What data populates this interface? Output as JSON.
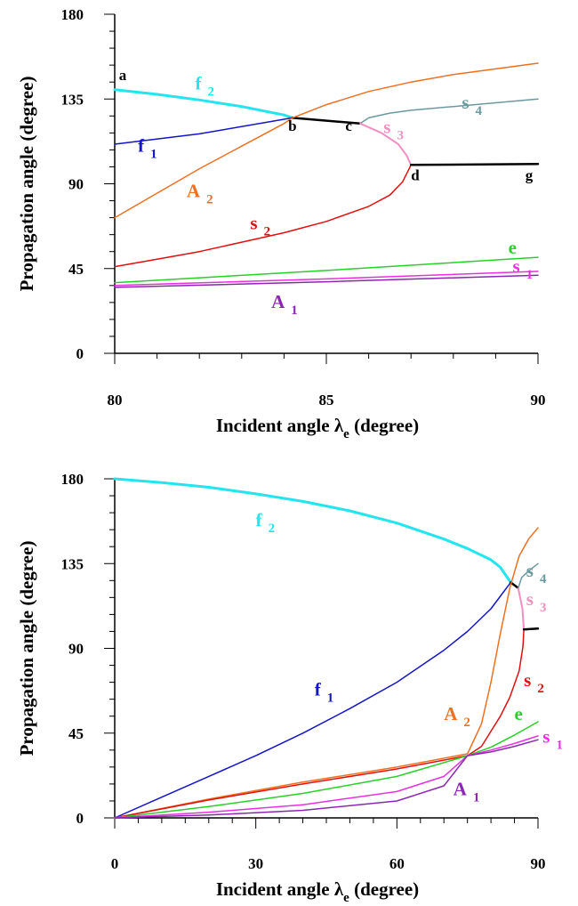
{
  "chart_data": [
    {
      "type": "line",
      "xlabel": "Incident angle λe (degree)",
      "ylabel": "Propagation angle (degree)",
      "xlim": [
        80,
        90
      ],
      "ylim": [
        0,
        180
      ],
      "x_ticks": [
        80,
        85,
        90
      ],
      "y_ticks": [
        0,
        45,
        90,
        135,
        180
      ],
      "grid": false,
      "series": [
        {
          "name": "f2",
          "color": "#22e5f0",
          "width": 3,
          "x": [
            80,
            81,
            82,
            83,
            84,
            84.2
          ],
          "y": [
            140,
            137.5,
            134.5,
            131,
            126.5,
            125
          ]
        },
        {
          "name": "f1",
          "color": "#1414c8",
          "width": 1.5,
          "x": [
            80,
            82,
            84.2
          ],
          "y": [
            111,
            116.5,
            125
          ]
        },
        {
          "name": "bc",
          "color": "#000000",
          "width": 2.5,
          "x": [
            84.2,
            85.8
          ],
          "y": [
            125,
            122
          ]
        },
        {
          "name": "A2",
          "color": "#ee7020",
          "width": 1.5,
          "x": [
            80,
            81,
            82,
            83,
            84,
            84.2,
            85,
            86,
            87,
            88,
            89,
            90
          ],
          "y": [
            72,
            85,
            98,
            110,
            122,
            125,
            132,
            139,
            144,
            148,
            151,
            154
          ]
        },
        {
          "name": "s4",
          "color": "#6a9aa0",
          "width": 1.5,
          "x": [
            85.8,
            86,
            86.5,
            87,
            88,
            89,
            90
          ],
          "y": [
            122,
            125,
            127.5,
            129,
            131,
            133,
            135
          ]
        },
        {
          "name": "s3",
          "color": "#f090c0",
          "width": 2,
          "x": [
            85.8,
            86.3,
            86.7,
            86.9,
            87
          ],
          "y": [
            122,
            117,
            111,
            105,
            100
          ]
        },
        {
          "name": "s2",
          "color": "#e01010",
          "width": 1.5,
          "x": [
            80,
            81,
            82,
            83,
            84,
            85,
            86,
            86.5,
            86.8,
            87
          ],
          "y": [
            46,
            50,
            54,
            59,
            64,
            70,
            78,
            84,
            91,
            100
          ]
        },
        {
          "name": "dg",
          "color": "#000000",
          "width": 2.5,
          "x": [
            87,
            90
          ],
          "y": [
            100,
            100.5
          ]
        },
        {
          "name": "e",
          "color": "#28d028",
          "width": 1.5,
          "x": [
            80,
            85,
            90
          ],
          "y": [
            37.5,
            44,
            51
          ]
        },
        {
          "name": "s1",
          "color": "#e830e0",
          "width": 1.5,
          "x": [
            80,
            85,
            90
          ],
          "y": [
            36,
            39.5,
            43.5
          ]
        },
        {
          "name": "A1",
          "color": "#8a28b0",
          "width": 1.5,
          "x": [
            80,
            85,
            90
          ],
          "y": [
            35,
            38,
            41.5
          ]
        }
      ],
      "curve_labels": [
        {
          "main": "f",
          "sub": "2",
          "color": "#22e5f0",
          "x": 81.9,
          "y": 140
        },
        {
          "main": "f",
          "sub": "1",
          "color": "#1414c8",
          "x": 80.55,
          "y": 107
        },
        {
          "main": "A",
          "sub": "2",
          "color": "#ee7020",
          "x": 81.7,
          "y": 83
        },
        {
          "main": "s",
          "sub": "2",
          "color": "#e01010",
          "x": 83.2,
          "y": 66
        },
        {
          "main": "s",
          "sub": "3",
          "color": "#f090c0",
          "x": 86.35,
          "y": 117
        },
        {
          "main": "s",
          "sub": "4",
          "color": "#6a9aa0",
          "x": 88.2,
          "y": 130
        },
        {
          "main": "e",
          "sub": "",
          "color": "#28d028",
          "x": 89.3,
          "y": 53
        },
        {
          "main": "s",
          "sub": "1",
          "color": "#e830e0",
          "x": 89.4,
          "y": 43
        },
        {
          "main": "A",
          "sub": "1",
          "color": "#8a28b0",
          "x": 83.7,
          "y": 24
        }
      ],
      "point_labels": [
        {
          "text": "a",
          "x": 80.1,
          "y": 145
        },
        {
          "text": "b",
          "x": 84.1,
          "y": 118
        },
        {
          "text": "c",
          "x": 85.45,
          "y": 118
        },
        {
          "text": "d",
          "x": 87,
          "y": 92
        },
        {
          "text": "g",
          "x": 89.7,
          "y": 92
        }
      ]
    },
    {
      "type": "line",
      "xlabel": "Incident angle λe (degree)",
      "ylabel": "Propagation angle (degree)",
      "xlim": [
        0,
        90
      ],
      "ylim": [
        0,
        180
      ],
      "x_ticks": [
        0,
        30,
        60,
        90
      ],
      "y_ticks": [
        0,
        45,
        90,
        135,
        180
      ],
      "grid": false,
      "series": [
        {
          "name": "f2",
          "color": "#22e5f0",
          "width": 3,
          "x": [
            0,
            10,
            20,
            30,
            40,
            50,
            60,
            70,
            75,
            80,
            82,
            84.2
          ],
          "y": [
            180,
            178,
            175.5,
            172,
            168,
            163,
            156.5,
            148,
            143,
            137,
            133,
            125
          ]
        },
        {
          "name": "f1",
          "color": "#1414c8",
          "width": 1.5,
          "x": [
            0,
            10,
            20,
            30,
            40,
            50,
            60,
            70,
            75,
            80,
            84.2
          ],
          "y": [
            0,
            11,
            22,
            33,
            45,
            58,
            72,
            89,
            99,
            111,
            125
          ]
        },
        {
          "name": "bc",
          "color": "#000000",
          "width": 2.5,
          "x": [
            84.2,
            85.8
          ],
          "y": [
            125,
            122
          ]
        },
        {
          "name": "A2",
          "color": "#ee7020",
          "width": 1.5,
          "x": [
            0,
            20,
            40,
            60,
            75,
            78,
            80,
            82,
            84,
            86,
            88,
            90
          ],
          "y": [
            0,
            10,
            19,
            27,
            34,
            50,
            72,
            98,
            122,
            139,
            148,
            154
          ]
        },
        {
          "name": "s4",
          "color": "#6a9aa0",
          "width": 1.5,
          "x": [
            85.8,
            86.5,
            88,
            90
          ],
          "y": [
            122,
            127.5,
            131,
            135
          ]
        },
        {
          "name": "s3",
          "color": "#f090c0",
          "width": 2,
          "x": [
            85.8,
            86.7,
            87
          ],
          "y": [
            122,
            111,
            100
          ]
        },
        {
          "name": "s2",
          "color": "#e01010",
          "width": 1.5,
          "x": [
            0,
            20,
            40,
            60,
            75,
            78,
            80,
            82,
            84,
            86,
            86.8,
            87
          ],
          "y": [
            0,
            9.5,
            18,
            26,
            33,
            38,
            46,
            54,
            64,
            78,
            91,
            100
          ]
        },
        {
          "name": "dg",
          "color": "#000000",
          "width": 2.5,
          "x": [
            87,
            90
          ],
          "y": [
            100,
            100.5
          ]
        },
        {
          "name": "e",
          "color": "#28d028",
          "width": 1.5,
          "x": [
            0,
            20,
            40,
            60,
            75,
            80,
            85,
            90
          ],
          "y": [
            0,
            6,
            13,
            22,
            33,
            37.5,
            44,
            51
          ]
        },
        {
          "name": "s1",
          "color": "#e830e0",
          "width": 1.5,
          "x": [
            0,
            20,
            40,
            60,
            70,
            75,
            80,
            85,
            90
          ],
          "y": [
            0,
            3,
            7,
            14,
            22,
            33,
            36,
            39.5,
            43.5
          ]
        },
        {
          "name": "A1",
          "color": "#8a28b0",
          "width": 1.5,
          "x": [
            0,
            20,
            40,
            60,
            70,
            75,
            80,
            85,
            90
          ],
          "y": [
            0,
            1.5,
            4,
            9,
            17,
            33,
            35,
            38,
            41.5
          ]
        }
      ],
      "curve_labels": [
        {
          "main": "f",
          "sub": "2",
          "color": "#22e5f0",
          "x": 30,
          "y": 155
        },
        {
          "main": "f",
          "sub": "1",
          "color": "#1414c8",
          "x": 42.5,
          "y": 65
        },
        {
          "main": "A",
          "sub": "2",
          "color": "#ee7020",
          "x": 70,
          "y": 52
        },
        {
          "main": "s",
          "sub": "2",
          "color": "#e01010",
          "x": 87,
          "y": 70
        },
        {
          "main": "s",
          "sub": "3",
          "color": "#f090c0",
          "x": 87.5,
          "y": 113
        },
        {
          "main": "s",
          "sub": "4",
          "color": "#6a9aa0",
          "x": 87.5,
          "y": 128
        },
        {
          "main": "e",
          "sub": "",
          "color": "#28d028",
          "x": 85,
          "y": 52
        },
        {
          "main": "s",
          "sub": "1",
          "color": "#e830e0",
          "x": 91,
          "y": 40
        },
        {
          "main": "A",
          "sub": "1",
          "color": "#8a28b0",
          "x": 72,
          "y": 12
        }
      ],
      "point_labels": []
    }
  ]
}
